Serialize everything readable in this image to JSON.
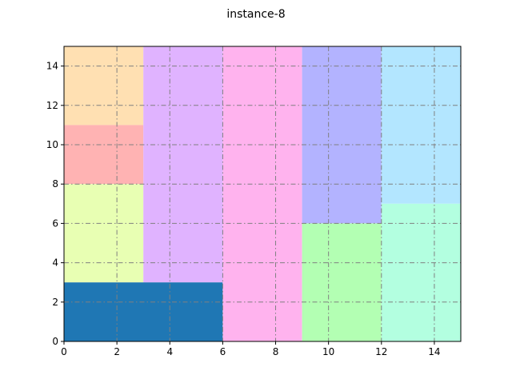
{
  "chart_data": {
    "type": "rectangles",
    "title": "instance-8",
    "xlabel": "",
    "ylabel": "",
    "xlim": [
      0,
      15
    ],
    "ylim": [
      0,
      15
    ],
    "xticks": [
      0,
      2,
      4,
      6,
      8,
      10,
      12,
      14
    ],
    "yticks": [
      0,
      2,
      4,
      6,
      8,
      10,
      12,
      14
    ],
    "grid": true,
    "grid_style": "dashdot",
    "rectangles": [
      {
        "x": 0,
        "y": 11,
        "w": 3,
        "h": 4,
        "color": "#ffe0b2"
      },
      {
        "x": 0,
        "y": 8,
        "w": 3,
        "h": 3,
        "color": "#ffb3b3"
      },
      {
        "x": 0,
        "y": 3,
        "w": 3,
        "h": 5,
        "color": "#e8ffb3"
      },
      {
        "x": 3,
        "y": 3,
        "w": 3,
        "h": 12,
        "color": "#e0b3ff"
      },
      {
        "x": 0,
        "y": 0,
        "w": 6,
        "h": 3,
        "color": "#1f77b4"
      },
      {
        "x": 6,
        "y": 0,
        "w": 3,
        "h": 15,
        "color": "#ffb3ee"
      },
      {
        "x": 9,
        "y": 6,
        "w": 3,
        "h": 9,
        "color": "#b3b3ff"
      },
      {
        "x": 9,
        "y": 0,
        "w": 3,
        "h": 6,
        "color": "#b3ffb3"
      },
      {
        "x": 12,
        "y": 7,
        "w": 3,
        "h": 8,
        "color": "#b3e6ff"
      },
      {
        "x": 12,
        "y": 0,
        "w": 3,
        "h": 7,
        "color": "#b3ffe0"
      }
    ]
  }
}
